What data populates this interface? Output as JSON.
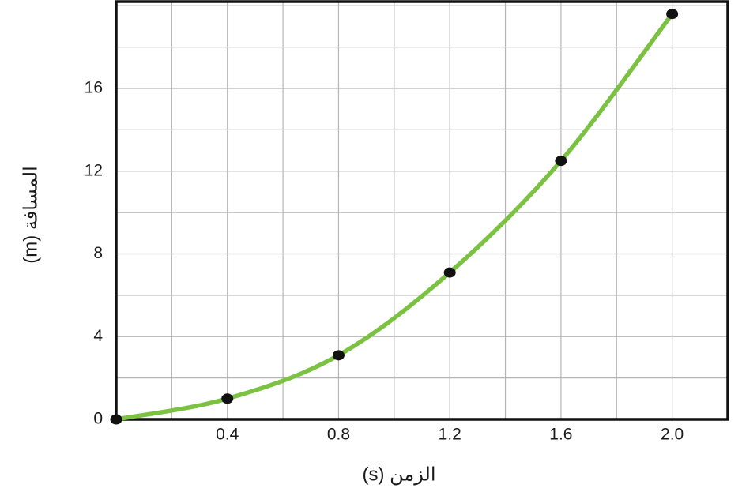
{
  "chart_data": {
    "type": "scatter",
    "x_label": "الزمن (s)",
    "y_label": "المسافة (m)",
    "series": [
      {
        "x": [
          0,
          0.4,
          0.8,
          1.2,
          1.6,
          2.0
        ],
        "values": [
          0,
          1.0,
          3.1,
          7.1,
          12.5,
          19.6
        ],
        "color": "#111111",
        "line_color": "#7cc242"
      }
    ],
    "smooth_line": true,
    "xlim": [
      0,
      2.2
    ],
    "ylim": [
      0,
      20.2
    ],
    "xticks": [
      0.4,
      0.8,
      1.2,
      1.6,
      {
        "value": 2,
        "label": "2.0"
      }
    ],
    "yticks": [
      0,
      4,
      8,
      12,
      16
    ],
    "xgrid": [
      0.2,
      0.4,
      0.6,
      0.8,
      1.0,
      1.2,
      1.4,
      1.6,
      1.8,
      2.0
    ],
    "ygrid": [
      2,
      4,
      6,
      8,
      10,
      12,
      14,
      16,
      18,
      20
    ],
    "grid": true
  }
}
